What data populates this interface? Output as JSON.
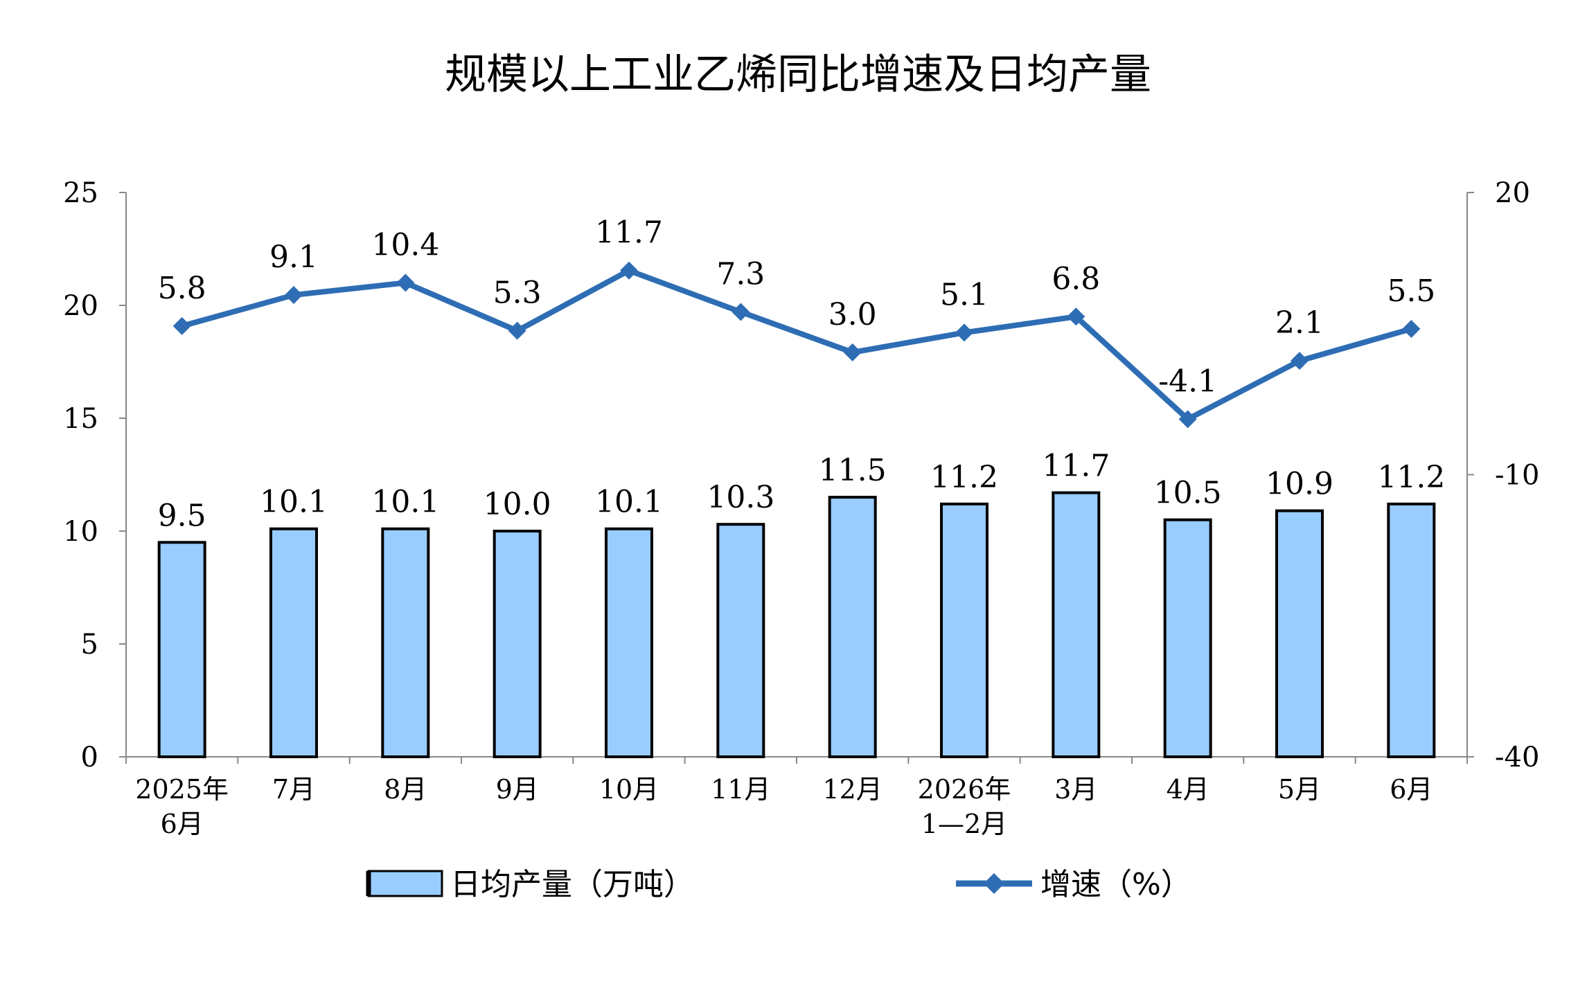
{
  "chart_data": {
    "type": "bar+line",
    "title": "规模以上工业乙烯同比增速及日均产量",
    "categories": [
      [
        "2025年",
        "6月"
      ],
      [
        "7月"
      ],
      [
        "8月"
      ],
      [
        "9月"
      ],
      [
        "10月"
      ],
      [
        "11月"
      ],
      [
        "12月"
      ],
      [
        "2026年",
        "1—2月"
      ],
      [
        "3月"
      ],
      [
        "4月"
      ],
      [
        "5月"
      ],
      [
        "6月"
      ]
    ],
    "series": [
      {
        "name": "日均产量（万吨）",
        "type": "bar",
        "axis": "left",
        "color": "#99CCFF",
        "values": [
          9.5,
          10.1,
          10.1,
          10.0,
          10.1,
          10.3,
          11.5,
          11.2,
          11.7,
          10.5,
          10.9,
          11.2
        ],
        "labels": [
          "9.5",
          "10.1",
          "10.1",
          "10.0",
          "10.1",
          "10.3",
          "11.5",
          "11.2",
          "11.7",
          "10.5",
          "10.9",
          "11.2"
        ]
      },
      {
        "name": "增速（%）",
        "type": "line",
        "axis": "right",
        "color": "#2E6DB4",
        "marker": "diamond",
        "values": [
          5.8,
          9.1,
          10.4,
          5.3,
          11.7,
          7.3,
          3.0,
          5.1,
          6.8,
          -4.1,
          2.1,
          5.5
        ],
        "labels": [
          "5.8",
          "9.1",
          "10.4",
          "5.3",
          "11.7",
          "7.3",
          "3.0",
          "5.1",
          "6.8",
          "-4.1",
          "2.1",
          "5.5"
        ]
      }
    ],
    "y_left": {
      "min": 0,
      "max": 25,
      "ticks": [
        "0",
        "5",
        "10",
        "15",
        "20",
        "25"
      ]
    },
    "y_right": {
      "min": -40,
      "max": 20,
      "ticks": [
        "-40",
        "-10",
        "20"
      ]
    },
    "grid": false,
    "legend": "bottom"
  }
}
